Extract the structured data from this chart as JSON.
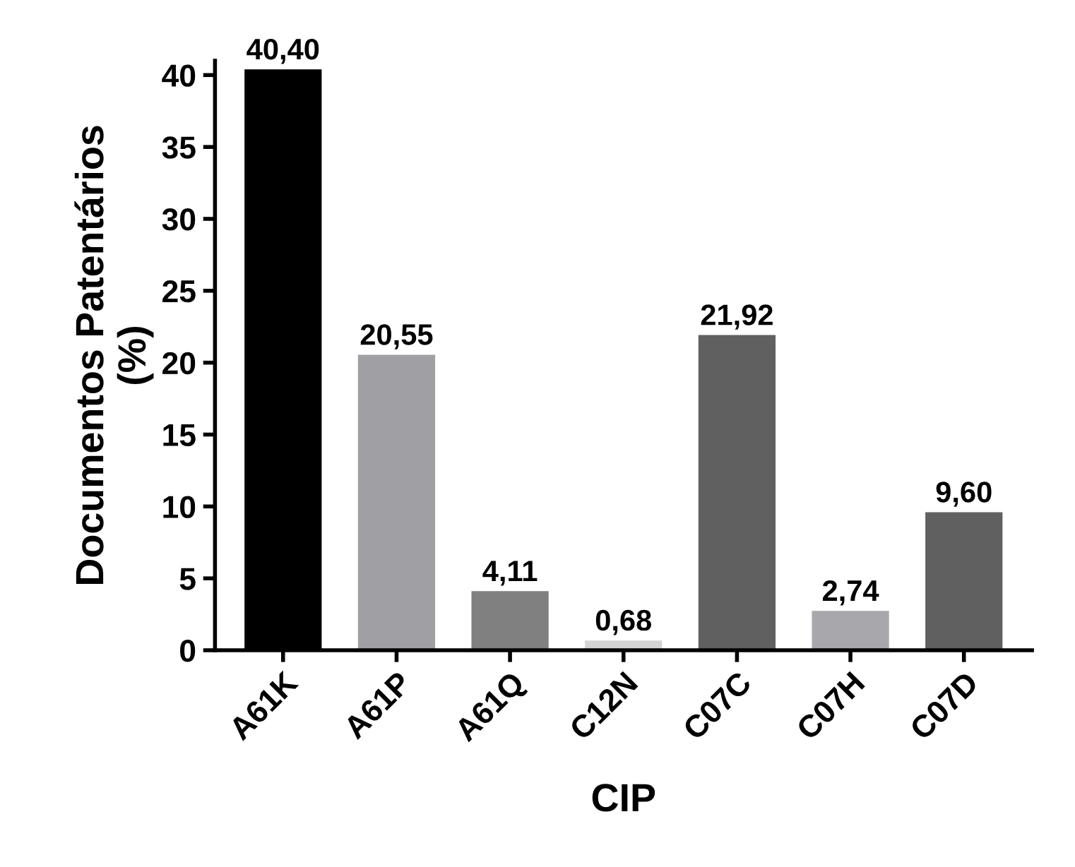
{
  "chart_data": {
    "type": "bar",
    "xlabel": "CIP",
    "ylabel": "Documentos Patentários\n(%)",
    "categories": [
      "A61K",
      "A61P",
      "A61Q",
      "C12N",
      "C07C",
      "C07H",
      "C07D"
    ],
    "values": [
      40.4,
      20.55,
      4.11,
      0.68,
      21.92,
      2.74,
      9.6
    ],
    "value_labels": [
      "40,40",
      "20,55",
      "4,11",
      "0,68",
      "21,92",
      "2,74",
      "9,60"
    ],
    "colors": [
      "#000000",
      "#a0a0a4",
      "#808080",
      "#d4d4d4",
      "#606060",
      "#a8a8ac",
      "#606060"
    ],
    "ylim": [
      0,
      41
    ],
    "yticks": [
      0,
      5,
      10,
      15,
      20,
      25,
      30,
      35,
      40
    ],
    "grid": false,
    "legend": false
  }
}
